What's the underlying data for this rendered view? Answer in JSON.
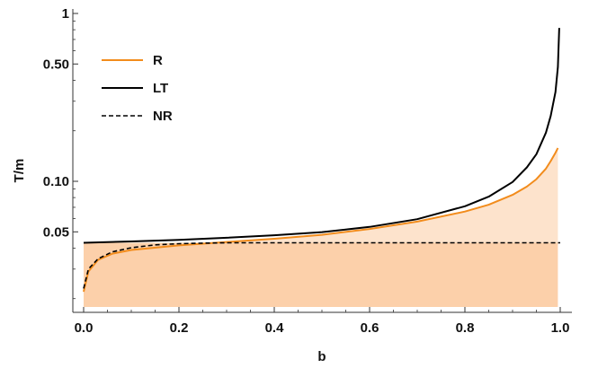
{
  "chart_data": {
    "type": "line",
    "title": "",
    "xlabel": "b",
    "ylabel": "T/m",
    "xlim": [
      0,
      1.0
    ],
    "ylim": [
      0.018,
      1.05
    ],
    "yscale": "log",
    "grid": false,
    "legend_position": "top-left",
    "x_ticks": [
      {
        "value": 0.0,
        "label": "0.0"
      },
      {
        "value": 0.2,
        "label": "0.2"
      },
      {
        "value": 0.4,
        "label": "0.4"
      },
      {
        "value": 0.6,
        "label": "0.6"
      },
      {
        "value": 0.8,
        "label": "0.8"
      },
      {
        "value": 1.0,
        "label": "1.0"
      }
    ],
    "y_ticks": [
      {
        "value": 0.05,
        "label": "0.05"
      },
      {
        "value": 0.1,
        "label": "0.10"
      },
      {
        "value": 0.5,
        "label": "0.50"
      },
      {
        "value": 1.0,
        "label": "1"
      }
    ],
    "series": [
      {
        "name": "R",
        "color": "#f28c1c",
        "style": "solid",
        "x": [
          0.0,
          0.01,
          0.03,
          0.06,
          0.1,
          0.2,
          0.3,
          0.4,
          0.5,
          0.6,
          0.7,
          0.8,
          0.85,
          0.9,
          0.93,
          0.95,
          0.97,
          0.98,
          0.99,
          0.995
        ],
        "y": [
          0.022,
          0.029,
          0.034,
          0.037,
          0.039,
          0.0415,
          0.0435,
          0.0455,
          0.048,
          0.052,
          0.0575,
          0.066,
          0.0725,
          0.083,
          0.093,
          0.103,
          0.119,
          0.132,
          0.148,
          0.158
        ]
      },
      {
        "name": "LT",
        "color": "#000000",
        "style": "solid",
        "x": [
          0.0,
          0.1,
          0.2,
          0.3,
          0.4,
          0.5,
          0.6,
          0.7,
          0.8,
          0.85,
          0.9,
          0.93,
          0.95,
          0.97,
          0.98,
          0.99,
          0.995,
          0.998
        ],
        "y": [
          0.043,
          0.0438,
          0.0448,
          0.0461,
          0.0477,
          0.0498,
          0.0535,
          0.0595,
          0.071,
          0.081,
          0.099,
          0.121,
          0.145,
          0.195,
          0.245,
          0.34,
          0.48,
          0.82
        ]
      },
      {
        "name": "NR",
        "color": "#000000",
        "style": "dashed",
        "x": [
          0.0,
          0.01,
          0.03,
          0.06,
          0.1,
          0.15,
          0.2,
          0.25,
          0.3,
          0.4,
          0.6,
          0.8,
          1.0
        ],
        "y": [
          0.023,
          0.03,
          0.0345,
          0.038,
          0.0402,
          0.0418,
          0.0425,
          0.0428,
          0.043,
          0.043,
          0.043,
          0.043,
          0.043
        ]
      }
    ]
  },
  "colors": {
    "fill_light": "#fde3cc",
    "fill_dark": "#fcd0aa",
    "axis": "#333333"
  }
}
